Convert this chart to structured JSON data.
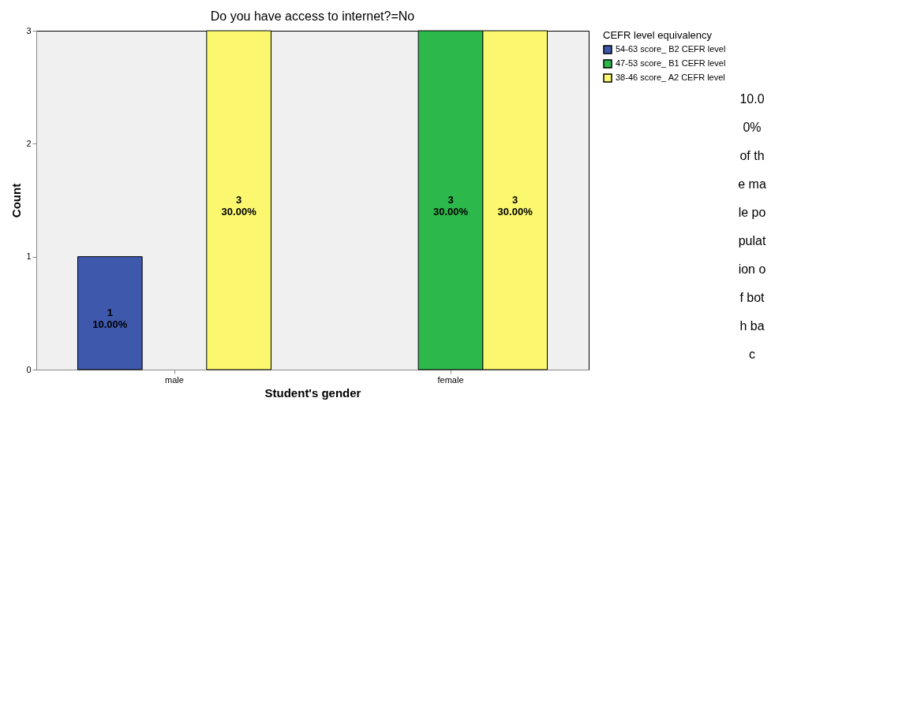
{
  "chart_data": {
    "type": "bar",
    "title": "Do you have access to internet?=No",
    "xlabel": "Student's gender",
    "ylabel": "Count",
    "legend_title": "CEFR level equivalency",
    "categories": [
      "male",
      "female"
    ],
    "series": [
      {
        "name": "54-63 score_ B2 CEFR level",
        "color": "#3e58ac",
        "values": [
          1,
          null
        ],
        "value_labels": [
          "1\n10.00%",
          null
        ]
      },
      {
        "name": "47-53 score_ B1 CEFR level",
        "color": "#2db84b",
        "values": [
          null,
          3
        ],
        "value_labels": [
          null,
          "3\n30.00%"
        ]
      },
      {
        "name": "38-46 score_ A2 CEFR level",
        "color": "#fbf870",
        "values": [
          3,
          3
        ],
        "value_labels": [
          "3\n30.00%",
          "3\n30.00%"
        ]
      }
    ],
    "ylim": [
      0,
      3
    ],
    "yticks": [
      0,
      1,
      2,
      3
    ],
    "grid": false,
    "legend": "top right",
    "annotations": [
      "10.00% of the male population of both bac"
    ]
  }
}
